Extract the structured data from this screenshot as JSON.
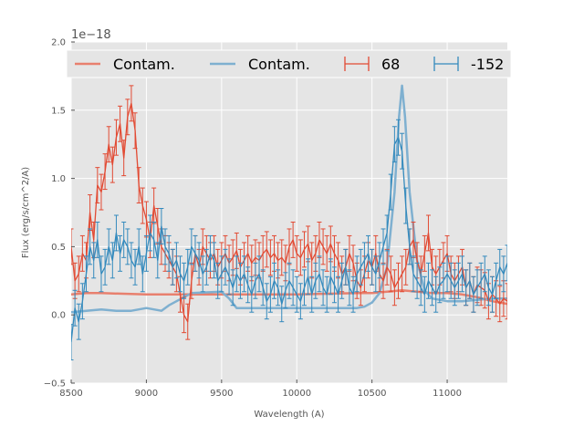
{
  "chart_data": {
    "type": "line",
    "title": "",
    "xlabel": "Wavelength (A)",
    "ylabel": "Flux (erg/s/cm^2/A)",
    "offset_label": "1e−18",
    "xlim": [
      8500,
      11400
    ],
    "ylim": [
      -0.5,
      2.0
    ],
    "grid": true,
    "legend_position": "top",
    "xticks": [
      8500,
      9000,
      9500,
      10000,
      10500,
      11000
    ],
    "xtick_labels": [
      "8500",
      "9000",
      "9500",
      "10000",
      "10500",
      "11000"
    ],
    "yticks": [
      -0.5,
      0.0,
      0.5,
      1.0,
      1.5,
      2.0
    ],
    "ytick_labels": [
      "−0.5",
      "0.0",
      "0.5",
      "1.0",
      "1.5",
      "2.0"
    ],
    "legend": [
      {
        "label": "Contam.",
        "kind": "line",
        "color": "#e8806e"
      },
      {
        "label": "Contam.",
        "kind": "line",
        "color": "#7fb0d0"
      },
      {
        "label": "68",
        "kind": "errorbar",
        "color": "#e24a33"
      },
      {
        "label": "-152",
        "kind": "errorbar",
        "color": "#348abd"
      }
    ],
    "series": [
      {
        "name": "Contam. (68)",
        "style": "line",
        "color": "#e8806e",
        "x": [
          8500,
          8600,
          8700,
          9000,
          9500,
          10000,
          10400,
          10500,
          10600,
          10700,
          10800,
          10900,
          11000,
          11100,
          11200,
          11300,
          11400
        ],
        "y": [
          0.15,
          0.16,
          0.16,
          0.15,
          0.15,
          0.15,
          0.16,
          0.16,
          0.17,
          0.18,
          0.17,
          0.16,
          0.16,
          0.15,
          0.13,
          0.1,
          0.08
        ]
      },
      {
        "name": "Contam. (-152)",
        "style": "line",
        "color": "#7fb0d0",
        "x": [
          8500,
          8600,
          8700,
          8800,
          8900,
          9000,
          9100,
          9150,
          9250,
          9300,
          9500,
          9550,
          9600,
          10000,
          10400,
          10450,
          10500,
          10550,
          10600,
          10650,
          10680,
          10700,
          10720,
          10750,
          10800,
          10850,
          10900,
          11000,
          11100,
          11200,
          11300,
          11400
        ],
        "y": [
          0.02,
          0.03,
          0.04,
          0.03,
          0.03,
          0.05,
          0.03,
          0.07,
          0.13,
          0.16,
          0.17,
          0.12,
          0.05,
          0.05,
          0.05,
          0.06,
          0.09,
          0.16,
          0.35,
          0.9,
          1.45,
          1.68,
          1.45,
          0.9,
          0.4,
          0.18,
          0.12,
          0.1,
          0.1,
          0.11,
          0.12,
          0.12
        ]
      },
      {
        "name": "68",
        "style": "errorbar",
        "color": "#e24a33",
        "x": [
          8500,
          8525,
          8550,
          8575,
          8600,
          8625,
          8650,
          8675,
          8700,
          8725,
          8750,
          8775,
          8800,
          8825,
          8850,
          8875,
          8900,
          8925,
          8950,
          8975,
          9000,
          9025,
          9050,
          9075,
          9100,
          9125,
          9150,
          9175,
          9200,
          9225,
          9250,
          9275,
          9300,
          9325,
          9350,
          9375,
          9400,
          9425,
          9450,
          9475,
          9500,
          9525,
          9550,
          9575,
          9600,
          9625,
          9650,
          9675,
          9700,
          9725,
          9750,
          9775,
          9800,
          9825,
          9850,
          9875,
          9900,
          9925,
          9950,
          9975,
          10000,
          10025,
          10050,
          10075,
          10100,
          10125,
          10150,
          10175,
          10200,
          10225,
          10250,
          10275,
          10300,
          10325,
          10350,
          10375,
          10400,
          10425,
          10450,
          10475,
          10500,
          10525,
          10550,
          10575,
          10600,
          10625,
          10650,
          10675,
          10700,
          10725,
          10750,
          10775,
          10800,
          10825,
          10850,
          10875,
          10900,
          10925,
          10950,
          10975,
          11000,
          11025,
          11050,
          11075,
          11100,
          11125,
          11150,
          11175,
          11200,
          11225,
          11250,
          11275,
          11300,
          11325,
          11350,
          11375,
          11400
        ],
        "y": [
          0.5,
          0.25,
          0.3,
          0.45,
          0.4,
          0.75,
          0.55,
          0.95,
          0.9,
          1.05,
          1.25,
          1.1,
          1.3,
          1.4,
          1.15,
          1.45,
          1.55,
          1.35,
          0.95,
          0.8,
          0.7,
          0.55,
          0.8,
          0.65,
          0.5,
          0.45,
          0.4,
          0.35,
          0.3,
          0.15,
          0.0,
          -0.05,
          0.25,
          0.45,
          0.35,
          0.5,
          0.45,
          0.4,
          0.45,
          0.35,
          0.4,
          0.45,
          0.38,
          0.42,
          0.47,
          0.35,
          0.4,
          0.45,
          0.38,
          0.42,
          0.4,
          0.45,
          0.48,
          0.42,
          0.45,
          0.4,
          0.42,
          0.38,
          0.5,
          0.55,
          0.45,
          0.42,
          0.48,
          0.52,
          0.4,
          0.45,
          0.55,
          0.5,
          0.45,
          0.52,
          0.45,
          0.4,
          0.3,
          0.35,
          0.45,
          0.38,
          0.25,
          0.2,
          0.3,
          0.4,
          0.35,
          0.45,
          0.3,
          0.25,
          0.35,
          0.3,
          0.2,
          0.25,
          0.3,
          0.35,
          0.5,
          0.55,
          0.4,
          0.3,
          0.45,
          0.6,
          0.35,
          0.3,
          0.35,
          0.4,
          0.45,
          0.3,
          0.25,
          0.3,
          0.35,
          0.2,
          0.25,
          0.15,
          0.22,
          0.2,
          0.18,
          0.1,
          0.15,
          0.12,
          0.08,
          0.12,
          0.1
        ],
        "yerr": 0.13
      },
      {
        "name": "-152",
        "style": "errorbar",
        "color": "#348abd",
        "x": [
          8500,
          8525,
          8550,
          8575,
          8600,
          8625,
          8650,
          8675,
          8700,
          8725,
          8750,
          8775,
          8800,
          8825,
          8850,
          8875,
          8900,
          8925,
          8950,
          8975,
          9000,
          9025,
          9050,
          9075,
          9100,
          9125,
          9150,
          9175,
          9200,
          9225,
          9250,
          9275,
          9300,
          9325,
          9350,
          9375,
          9400,
          9425,
          9450,
          9475,
          9500,
          9525,
          9550,
          9575,
          9600,
          9625,
          9650,
          9675,
          9700,
          9725,
          9750,
          9775,
          9800,
          9825,
          9850,
          9875,
          9900,
          9925,
          9950,
          9975,
          10000,
          10025,
          10050,
          10075,
          10100,
          10125,
          10150,
          10175,
          10200,
          10225,
          10250,
          10275,
          10300,
          10325,
          10350,
          10375,
          10400,
          10425,
          10450,
          10475,
          10500,
          10525,
          10550,
          10575,
          10600,
          10625,
          10650,
          10675,
          10700,
          10725,
          10750,
          10775,
          10800,
          10825,
          10850,
          10875,
          10900,
          10925,
          10950,
          10975,
          11000,
          11025,
          11050,
          11075,
          11100,
          11125,
          11150,
          11175,
          11200,
          11225,
          11250,
          11275,
          11300,
          11325,
          11350,
          11375,
          11400
        ],
        "y": [
          -0.2,
          0.05,
          -0.05,
          0.1,
          0.3,
          0.5,
          0.4,
          0.55,
          0.3,
          0.35,
          0.5,
          0.4,
          0.6,
          0.45,
          0.55,
          0.5,
          0.4,
          0.35,
          0.5,
          0.3,
          0.45,
          0.6,
          0.55,
          0.4,
          0.65,
          0.5,
          0.45,
          0.35,
          0.4,
          0.3,
          0.25,
          0.35,
          0.5,
          0.45,
          0.4,
          0.3,
          0.35,
          0.45,
          0.4,
          0.25,
          0.3,
          0.35,
          0.28,
          0.2,
          0.3,
          0.25,
          0.3,
          0.22,
          0.15,
          0.25,
          0.3,
          0.2,
          0.1,
          0.15,
          0.25,
          0.2,
          0.08,
          0.18,
          0.25,
          0.2,
          0.15,
          0.1,
          0.2,
          0.28,
          0.15,
          0.25,
          0.3,
          0.2,
          0.15,
          0.28,
          0.22,
          0.15,
          0.25,
          0.35,
          0.2,
          0.15,
          0.3,
          0.35,
          0.4,
          0.45,
          0.35,
          0.3,
          0.4,
          0.5,
          0.6,
          0.9,
          1.25,
          1.3,
          1.2,
          0.8,
          0.5,
          0.3,
          0.25,
          0.2,
          0.15,
          0.25,
          0.2,
          0.15,
          0.22,
          0.25,
          0.3,
          0.25,
          0.2,
          0.25,
          0.3,
          0.2,
          0.25,
          0.15,
          0.2,
          0.25,
          0.3,
          0.2,
          0.15,
          0.25,
          0.35,
          0.3,
          0.38
        ],
        "yerr": 0.13
      }
    ]
  }
}
